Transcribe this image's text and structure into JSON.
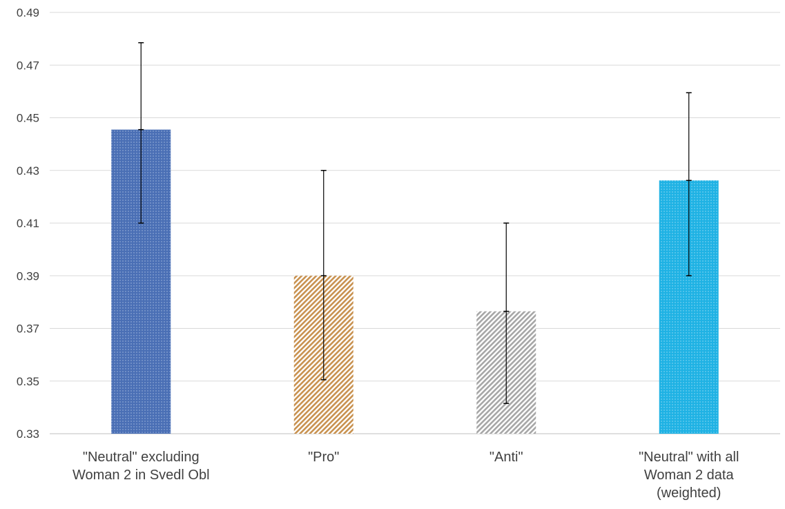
{
  "chart_data": {
    "type": "bar",
    "title": "",
    "xlabel": "",
    "ylabel": "",
    "ylim": [
      0.33,
      0.49
    ],
    "yticks": [
      0.33,
      0.35,
      0.37,
      0.39,
      0.41,
      0.43,
      0.45,
      0.47,
      0.49
    ],
    "ytick_labels": [
      "0.33",
      "0.35",
      "0.37",
      "0.39",
      "0.41",
      "0.43",
      "0.45",
      "0.47",
      "0.49"
    ],
    "grid": true,
    "categories": [
      [
        "\"Neutral\" excluding",
        "Woman 2 in Svedl Obl"
      ],
      [
        "\"Pro\""
      ],
      [
        "\"Anti\""
      ],
      [
        "\"Neutral\" with all",
        "Woman 2 data",
        "(weighted)"
      ]
    ],
    "values": [
      0.4455,
      0.39,
      0.3765,
      0.4262
    ],
    "error_bars": [
      {
        "low": 0.41,
        "high": 0.4785
      },
      {
        "low": 0.3505,
        "high": 0.43
      },
      {
        "low": 0.3415,
        "high": 0.41
      },
      {
        "low": 0.39,
        "high": 0.4595
      }
    ],
    "bar_colors": [
      "#4a6fb5",
      "#c8914f",
      "#a6a6a6",
      "#1fb2e4"
    ],
    "bar_patterns": [
      "dots",
      "diagonal-stripes",
      "diagonal-stripes",
      "dots"
    ]
  }
}
